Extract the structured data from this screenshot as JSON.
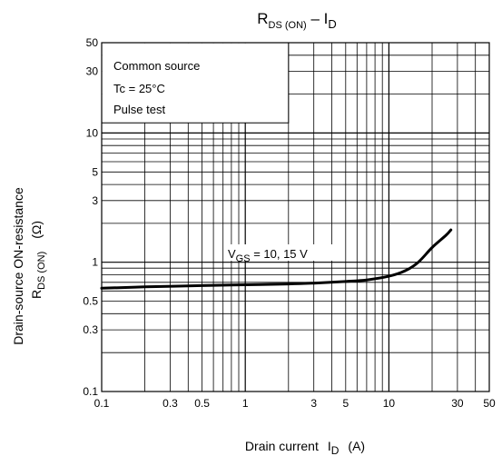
{
  "chart_data": {
    "type": "line",
    "title": {
      "main": "R",
      "sub1": "DS (ON)",
      "sep": " – I",
      "sub2": "D"
    },
    "xlabel": {
      "main": "Drain current",
      "symbol": "I",
      "sub": "D",
      "unit": "(A)"
    },
    "ylabel": {
      "line1": "Drain-source ON-resistance",
      "symbol": "R",
      "sub": "DS (ON)",
      "unit": "(Ω)"
    },
    "x_scale": "log",
    "y_scale": "log",
    "xlim": [
      0.1,
      50
    ],
    "ylim": [
      0.1,
      50
    ],
    "x_ticks": [
      0.1,
      0.3,
      0.5,
      1,
      3,
      5,
      10,
      30,
      50
    ],
    "x_tick_labels": [
      "0.1",
      "0.3",
      "0.5",
      "1",
      "3",
      "5",
      "10",
      "30",
      "50"
    ],
    "y_ticks": [
      0.1,
      0.3,
      0.5,
      1,
      3,
      5,
      10,
      30,
      50
    ],
    "y_tick_labels": [
      "0.1",
      "0.3",
      "0.5",
      "1",
      "3",
      "5",
      "10",
      "30",
      "50"
    ],
    "grid": true,
    "conditions": [
      "Common source",
      "Tc = 25°C",
      "Pulse test"
    ],
    "series": [
      {
        "label": {
          "main": "V",
          "sub": "GS",
          "rest": " = 10, 15 V"
        },
        "x": [
          0.1,
          0.2,
          0.5,
          1,
          2,
          3,
          5,
          7,
          10,
          13,
          16,
          20,
          25,
          27
        ],
        "y": [
          0.63,
          0.645,
          0.66,
          0.67,
          0.68,
          0.69,
          0.71,
          0.73,
          0.78,
          0.86,
          1.0,
          1.3,
          1.62,
          1.78
        ]
      }
    ]
  }
}
